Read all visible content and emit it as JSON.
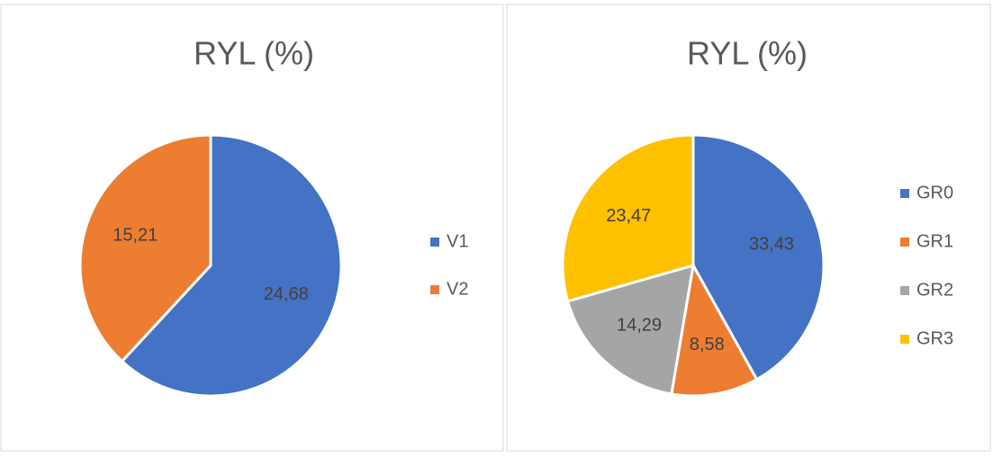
{
  "chart_data": [
    {
      "type": "pie",
      "title": "RYL (%)",
      "categories": [
        "V1",
        "V2"
      ],
      "values": [
        24.68,
        15.21
      ],
      "value_labels": [
        "24,68",
        "15,21"
      ],
      "colors": [
        "#4472c4",
        "#ed7d31"
      ],
      "legend": "right"
    },
    {
      "type": "pie",
      "title": "RYL (%)",
      "categories": [
        "GR0",
        "GR1",
        "GR2",
        "GR3"
      ],
      "values": [
        33.43,
        8.58,
        14.29,
        23.47
      ],
      "value_labels": [
        "33,43",
        "8,58",
        "14,29",
        "23,47"
      ],
      "colors": [
        "#4472c4",
        "#ed7d31",
        "#a5a5a5",
        "#ffc000"
      ],
      "legend": "right"
    }
  ]
}
